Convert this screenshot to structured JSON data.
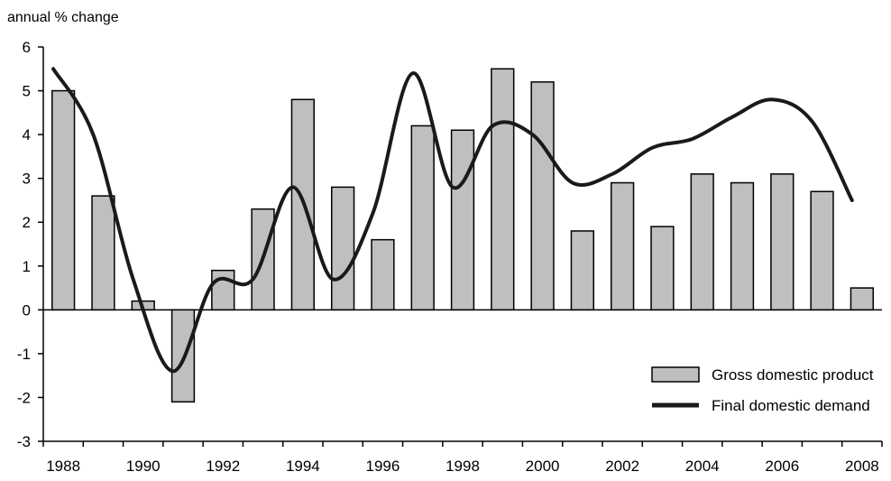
{
  "chart_data": {
    "type": "bar",
    "title": "",
    "ylabel": "annual % change",
    "xlabel": "",
    "ylim": [
      -3,
      6
    ],
    "yticks": [
      -3,
      -2,
      -1,
      0,
      1,
      2,
      3,
      4,
      5,
      6
    ],
    "categories": [
      "1988",
      "1989",
      "1990",
      "1991",
      "1992",
      "1993",
      "1994",
      "1995",
      "1996",
      "1997",
      "1998",
      "1999",
      "2000",
      "2001",
      "2002",
      "2003",
      "2004",
      "2005",
      "2006",
      "2007",
      "2008"
    ],
    "xtick_labels": [
      "1988",
      "1990",
      "1992",
      "1994",
      "1996",
      "1998",
      "2000",
      "2002",
      "2004",
      "2006",
      "2008"
    ],
    "series": [
      {
        "name": "Gross domestic product",
        "type": "bar",
        "color": "#bfbfbf",
        "values": [
          5.0,
          2.6,
          0.2,
          -2.1,
          0.9,
          2.3,
          4.8,
          2.8,
          1.6,
          4.2,
          4.1,
          5.5,
          5.2,
          1.8,
          2.9,
          1.9,
          3.1,
          2.9,
          3.1,
          2.7,
          0.5
        ]
      },
      {
        "name": "Final domestic demand",
        "type": "line",
        "color": "#1a1a1a",
        "values": [
          5.5,
          4.0,
          0.7,
          -1.4,
          0.6,
          0.7,
          2.8,
          0.7,
          2.2,
          5.4,
          2.8,
          4.2,
          4.0,
          2.9,
          3.1,
          3.7,
          3.9,
          4.4,
          4.8,
          4.3,
          2.5
        ]
      }
    ],
    "legend_position": "bottom-right",
    "grid": false
  }
}
